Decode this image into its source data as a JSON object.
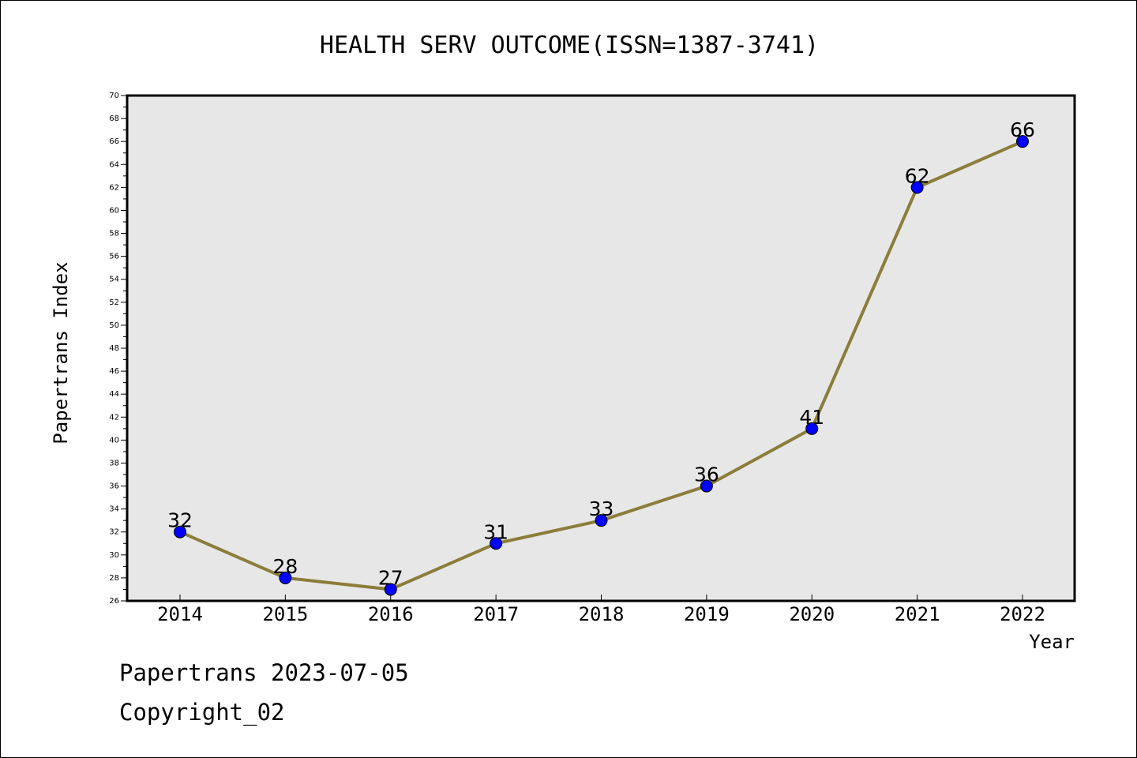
{
  "chart_data": {
    "type": "line",
    "title": "HEALTH SERV OUTCOME(ISSN=1387-3741)",
    "xlabel": "Year",
    "ylabel": "Papertrans Index",
    "categories": [
      "2014",
      "2015",
      "2016",
      "2017",
      "2018",
      "2019",
      "2020",
      "2021",
      "2022"
    ],
    "values": [
      32,
      28,
      27,
      31,
      33,
      36,
      41,
      62,
      66
    ],
    "data_labels": [
      "32",
      "28",
      "27",
      "31",
      "33",
      "36",
      "41",
      "62",
      "66"
    ],
    "ylim": [
      26,
      70
    ],
    "y_ticks": [
      "26",
      "28",
      "30",
      "32",
      "34",
      "36",
      "38",
      "40",
      "42",
      "44",
      "46",
      "48",
      "50",
      "52",
      "54",
      "56",
      "58",
      "60",
      "62",
      "64",
      "66",
      "68",
      "70"
    ],
    "grid": false,
    "legend": "none",
    "colors": {
      "line": "#8b7d3a",
      "marker": "#0000ff",
      "plot_background": "#e7e7e7"
    }
  },
  "footer": {
    "line1": "Papertrans 2023-07-05",
    "line2": "Copyright_02"
  }
}
